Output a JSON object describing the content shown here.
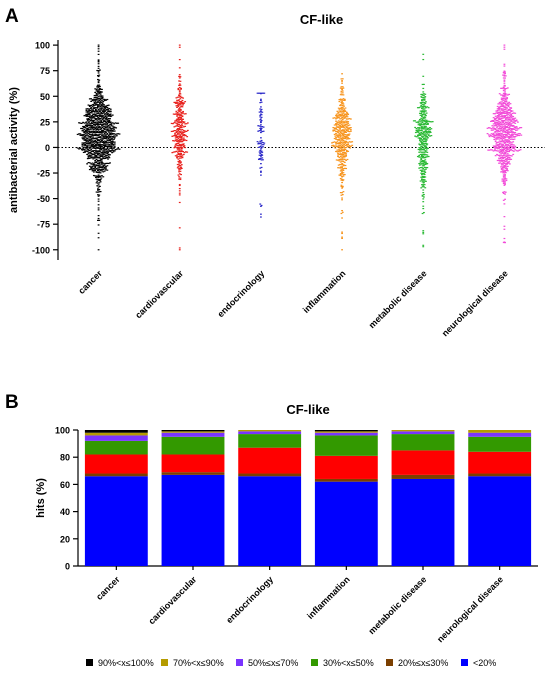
{
  "figure": {
    "panel_a_letter": "A",
    "panel_b_letter": "B"
  },
  "chart_data": [
    {
      "type": "scatter",
      "subtype": "beeswarm",
      "title": "CF-like",
      "xlabel": "",
      "ylabel": "antibacterial activity (%)",
      "ylim": [
        -110,
        105
      ],
      "yticks": [
        100,
        75,
        50,
        25,
        0,
        -25,
        -50,
        -75,
        -100
      ],
      "reference_line": {
        "y": 0,
        "style": "dotted"
      },
      "categories": [
        "cancer",
        "cardiovascular",
        "endocrinology",
        "inflammation",
        "metabolic disease",
        "neurological disease"
      ],
      "series": [
        {
          "category": "cancer",
          "color": "#000000",
          "approx_points": 1000,
          "median": 12,
          "q1": 0,
          "q3": 25,
          "min": -100,
          "max": 100
        },
        {
          "category": "cardiovascular",
          "color": "#e8201c",
          "approx_points": 320,
          "median": 15,
          "q1": 2,
          "q3": 27,
          "min": -100,
          "max": 100
        },
        {
          "category": "endocrinology",
          "color": "#2a28c8",
          "approx_points": 90,
          "median": 12,
          "q1": 0,
          "q3": 27,
          "min": -68,
          "max": 53
        },
        {
          "category": "inflammation",
          "color": "#f7941d",
          "approx_points": 420,
          "median": 13,
          "q1": 0,
          "q3": 26,
          "min": -100,
          "max": 72
        },
        {
          "category": "metabolic disease",
          "color": "#29b933",
          "approx_points": 360,
          "median": 10,
          "q1": -2,
          "q3": 25,
          "min": -97,
          "max": 91
        },
        {
          "category": "neurological disease",
          "color": "#f24bd8",
          "approx_points": 680,
          "median": 14,
          "q1": 3,
          "q3": 27,
          "min": -93,
          "max": 100
        }
      ]
    },
    {
      "type": "bar",
      "subtype": "stacked",
      "title": "CF-like",
      "xlabel": "",
      "ylabel": "hits (%)",
      "ylim": [
        0,
        100
      ],
      "yticks": [
        0,
        20,
        40,
        60,
        80,
        100
      ],
      "categories": [
        "cancer",
        "cardiovascular",
        "endocrinology",
        "inflammation",
        "metabolic disease",
        "neurological disease"
      ],
      "legend_position": "bottom",
      "series": [
        {
          "name": "<20%",
          "color": "#0000ff",
          "values": [
            66,
            67,
            66,
            62,
            64,
            66
          ]
        },
        {
          "name": "20%≤x≤30%",
          "color": "#7b3f00",
          "values": [
            2,
            2,
            2,
            2,
            3,
            2
          ]
        },
        {
          "name": "",
          "color": "#ff0000",
          "values": [
            14,
            13,
            19,
            17,
            18,
            16
          ]
        },
        {
          "name": "30%<x≤50%",
          "color": "#339900",
          "values": [
            10,
            13,
            10,
            15,
            12,
            11
          ]
        },
        {
          "name": "50%≤x≤70%",
          "color": "#7a33ff",
          "values": [
            4,
            3,
            2,
            2,
            2,
            3
          ]
        },
        {
          "name": "70%<x≤90%",
          "color": "#b59b00",
          "values": [
            2,
            1,
            1,
            1,
            1,
            2
          ]
        },
        {
          "name": "90%<x≤100%",
          "color": "#000000",
          "values": [
            2,
            1,
            0,
            1,
            0,
            0
          ]
        }
      ],
      "legend_entries": [
        {
          "label": "90%<x≤100%",
          "color": "#000000"
        },
        {
          "label": "70%<x≤90%",
          "color": "#b59b00"
        },
        {
          "label": "50%≤x≤70%",
          "color": "#7a33ff"
        },
        {
          "label": "30%<x≤50%",
          "color": "#339900"
        },
        {
          "label": "20%≤x≤30%",
          "color": "#7b3f00"
        },
        {
          "label": "<20%",
          "color": "#0000ff"
        }
      ]
    }
  ]
}
